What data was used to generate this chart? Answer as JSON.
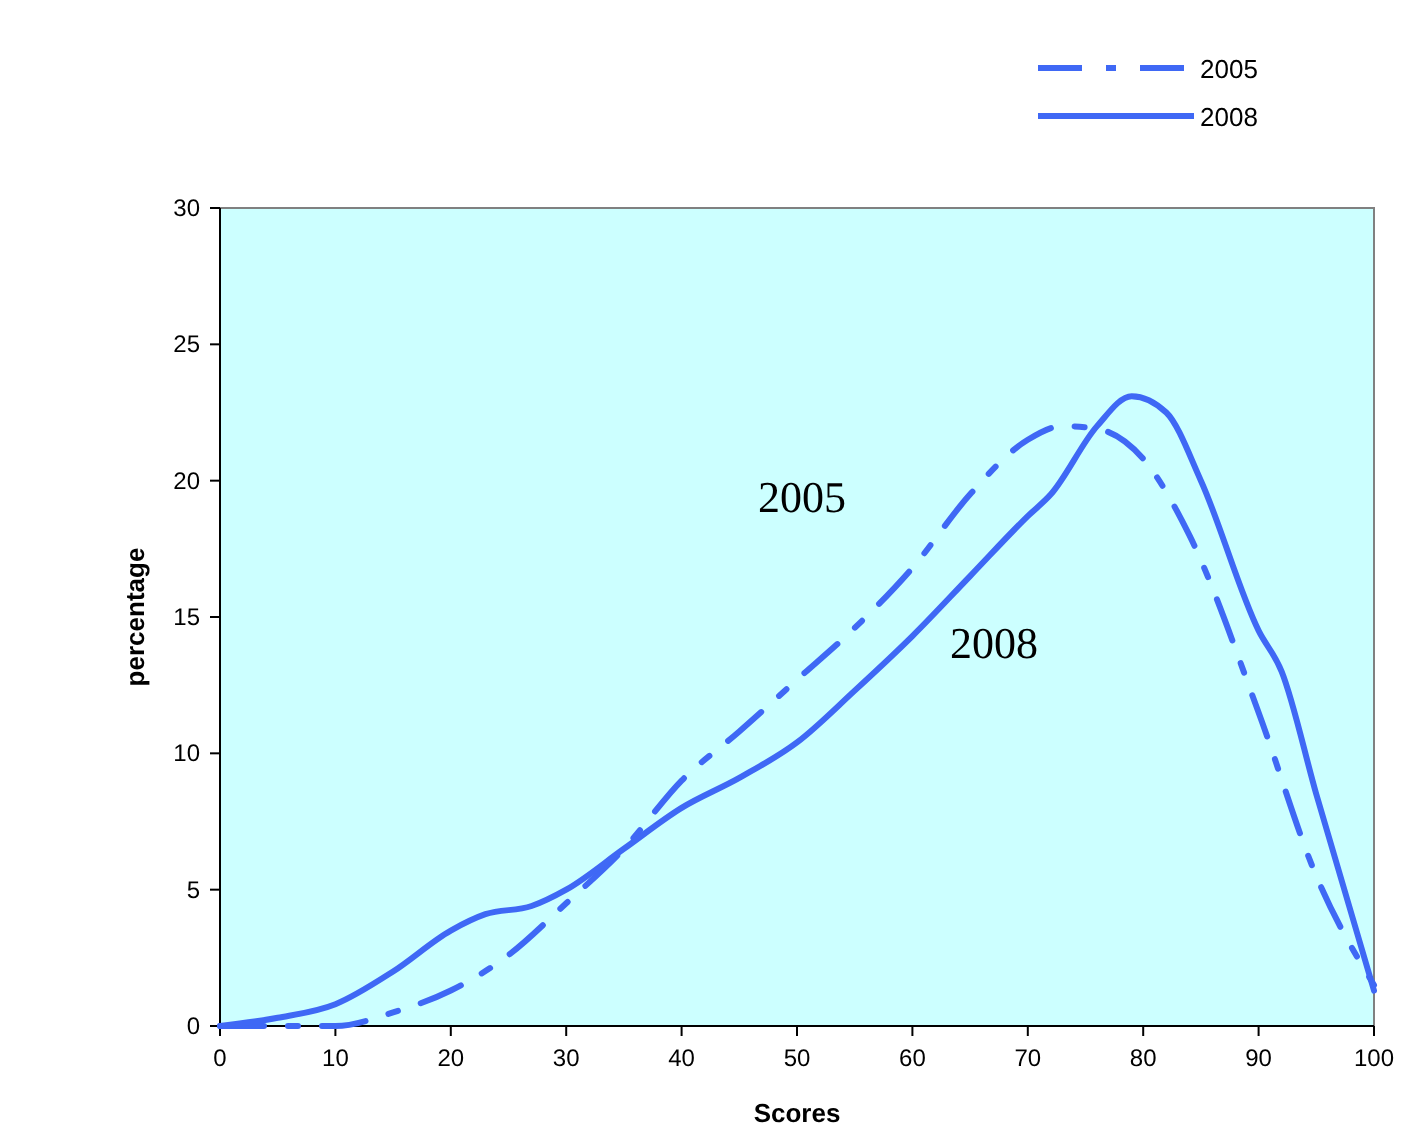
{
  "chart_data": {
    "type": "line",
    "xlabel": "Scores",
    "ylabel": "percentage",
    "xlim": [
      0,
      100
    ],
    "ylim": [
      0,
      30
    ],
    "xticks": [
      0,
      10,
      20,
      30,
      40,
      50,
      60,
      70,
      80,
      90,
      100
    ],
    "yticks": [
      0,
      5,
      10,
      15,
      20,
      25,
      30
    ],
    "grid": false,
    "legend": "top right",
    "series": [
      {
        "name": "2005",
        "color": "#3f68f5",
        "line_style": "dashed",
        "x": [
          0,
          10,
          15,
          20,
          25,
          30,
          35,
          40,
          45,
          50,
          55,
          60,
          65,
          70,
          73,
          76,
          80,
          84,
          90,
          95,
          100
        ],
        "values": [
          0,
          0,
          0.5,
          1.3,
          2.6,
          4.5,
          6.5,
          9,
          10.8,
          12.7,
          14.6,
          16.8,
          19.5,
          21.5,
          22,
          21.9,
          20.8,
          18,
          11.5,
          5.5,
          1.5
        ]
      },
      {
        "name": "2008",
        "color": "#3f68f5",
        "line_style": "solid",
        "x": [
          0,
          5,
          10,
          15,
          20,
          23,
          27,
          30,
          35,
          40,
          45,
          50,
          55,
          60,
          65,
          70,
          72,
          76,
          79,
          82,
          85,
          90,
          92,
          95,
          100
        ],
        "values": [
          0,
          0.3,
          0.8,
          2,
          3.5,
          4.1,
          4.4,
          5,
          6.5,
          8,
          9.1,
          10.4,
          12.3,
          14.3,
          16.5,
          18.7,
          19.5,
          22,
          23.1,
          22.5,
          20,
          14.5,
          13,
          8.5,
          1.3
        ]
      }
    ],
    "annotations": [
      "2005",
      "2008"
    ]
  }
}
